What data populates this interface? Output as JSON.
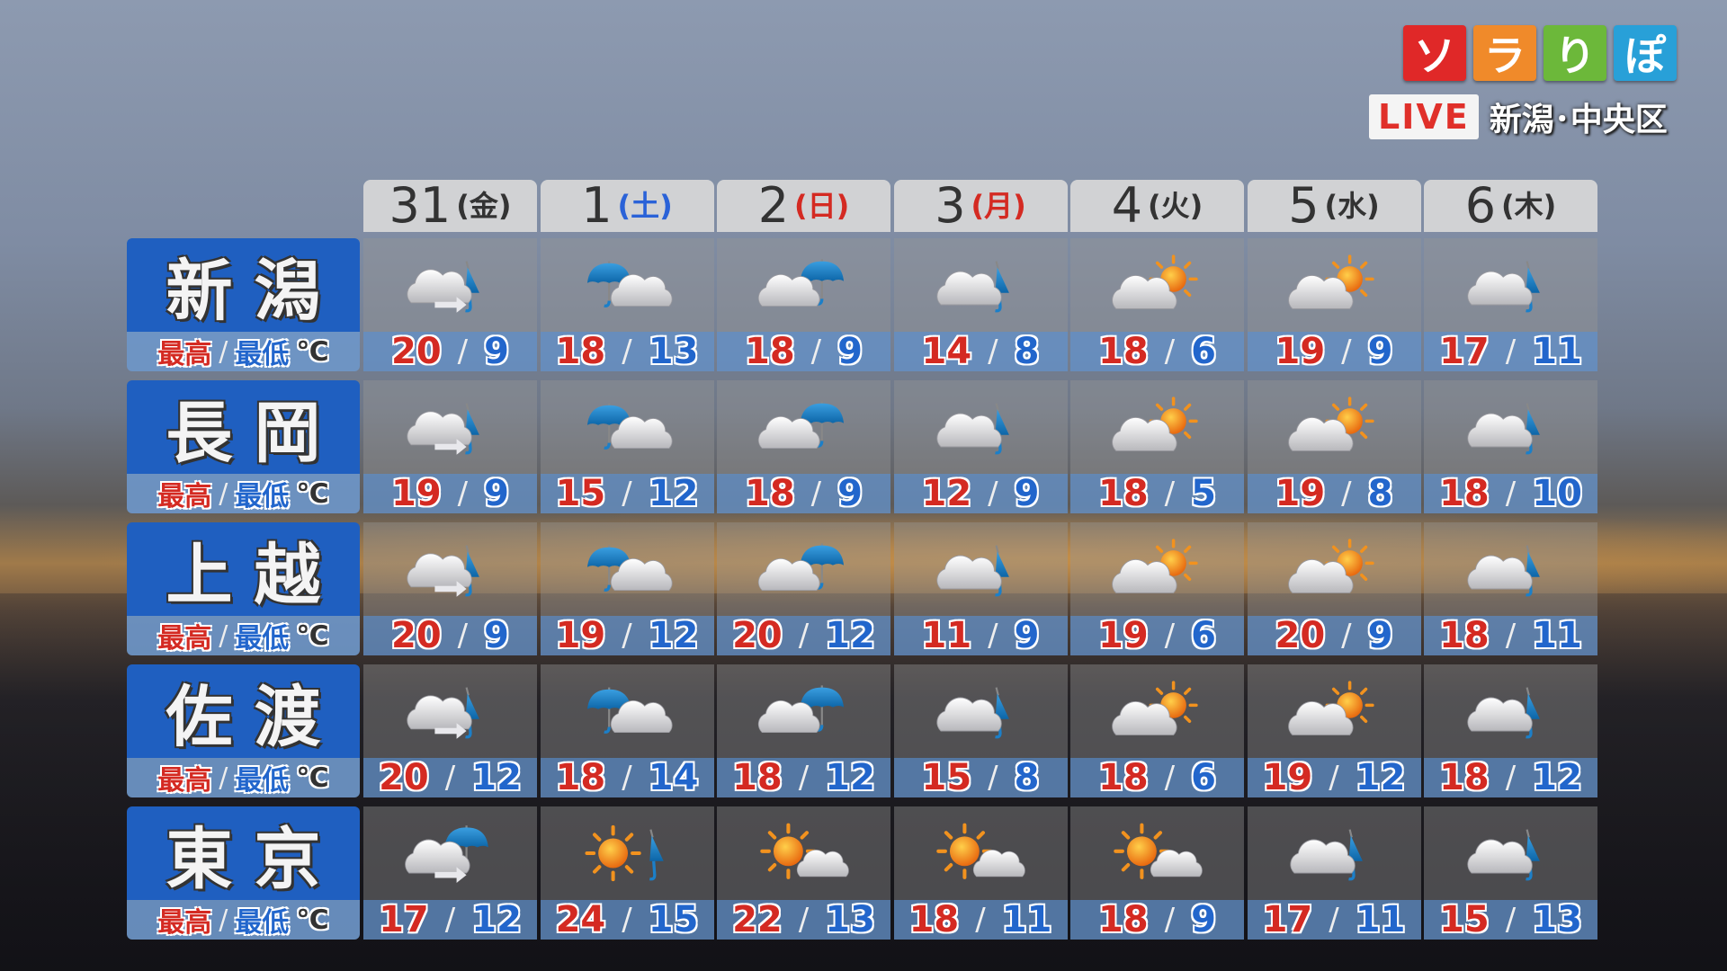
{
  "branding": {
    "logo_chars": [
      "ソ",
      "ラ",
      "り",
      "ぽ"
    ],
    "logo_colors": [
      "#e02828",
      "#f08a2a",
      "#6cb83a",
      "#28a0d8"
    ],
    "live_label": "LIVE",
    "location": "新潟･中央区"
  },
  "colors": {
    "high": "#d42a22",
    "low": "#2266cc",
    "saturday": "#2a62d8",
    "holiday": "#d42a22",
    "weekday": "#333333"
  },
  "days": [
    {
      "date": "31",
      "weekday": "(金)",
      "kind": "weekday"
    },
    {
      "date": "1",
      "weekday": "(土)",
      "kind": "saturday"
    },
    {
      "date": "2",
      "weekday": "(日)",
      "kind": "holiday"
    },
    {
      "date": "3",
      "weekday": "(月)",
      "kind": "holiday"
    },
    {
      "date": "4",
      "weekday": "(火)",
      "kind": "weekday"
    },
    {
      "date": "5",
      "weekday": "(水)",
      "kind": "weekday"
    },
    {
      "date": "6",
      "weekday": "(木)",
      "kind": "weekday"
    }
  ],
  "temp_label": {
    "high": "最高",
    "sep": "/",
    "low": "最低",
    "unit": "℃"
  },
  "cities": [
    {
      "name": "新潟",
      "icons": [
        "cloud-later-rain",
        "rain-occasional-cloud",
        "cloud-occasional-rain",
        "cloud-partly-rain",
        "cloud-occasional-sun",
        "cloud-occasional-sun",
        "cloud-partly-rain"
      ],
      "high": [
        20,
        18,
        18,
        14,
        18,
        19,
        17
      ],
      "low": [
        9,
        13,
        9,
        8,
        6,
        9,
        11
      ]
    },
    {
      "name": "長岡",
      "icons": [
        "cloud-later-rain",
        "rain-occasional-cloud",
        "cloud-occasional-rain",
        "cloud-partly-rain",
        "cloud-occasional-sun",
        "cloud-occasional-sun",
        "cloud-partly-rain"
      ],
      "high": [
        19,
        15,
        18,
        12,
        18,
        19,
        18
      ],
      "low": [
        9,
        12,
        9,
        9,
        5,
        8,
        10
      ]
    },
    {
      "name": "上越",
      "icons": [
        "cloud-later-rain",
        "rain-occasional-cloud",
        "cloud-occasional-rain",
        "cloud-partly-rain",
        "cloud-occasional-sun",
        "cloud-occasional-sun",
        "cloud-partly-rain"
      ],
      "high": [
        20,
        19,
        20,
        11,
        19,
        20,
        18
      ],
      "low": [
        9,
        12,
        12,
        9,
        6,
        9,
        11
      ]
    },
    {
      "name": "佐渡",
      "icons": [
        "cloud-later-rain",
        "rain-occasional-cloud",
        "cloud-occasional-rain",
        "cloud-partly-rain",
        "cloud-occasional-sun",
        "cloud-occasional-sun",
        "cloud-partly-rain"
      ],
      "high": [
        20,
        18,
        18,
        15,
        18,
        19,
        18
      ],
      "low": [
        12,
        14,
        12,
        8,
        6,
        12,
        12
      ]
    },
    {
      "name": "東京",
      "icons": [
        "cloud-later-rain-open",
        "sun-partly-rain",
        "sun-occasional-cloud",
        "sun-occasional-cloud",
        "sun-occasional-cloud",
        "cloud-partly-rain",
        "cloud-partly-rain"
      ],
      "high": [
        17,
        24,
        22,
        18,
        18,
        17,
        15
      ],
      "low": [
        12,
        15,
        13,
        11,
        9,
        11,
        13
      ]
    }
  ]
}
